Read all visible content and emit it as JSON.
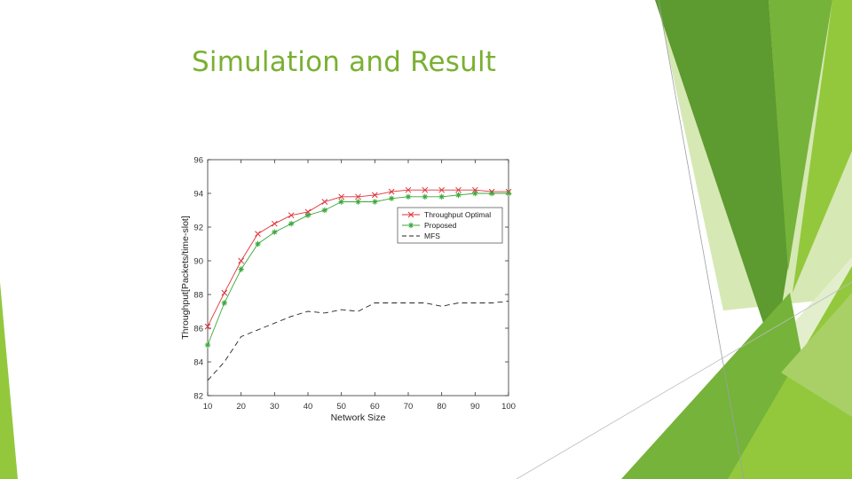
{
  "slide": {
    "title": "Simulation and Result"
  },
  "colors": {
    "title": "#7ab032",
    "accent_dark": "#5d9a2f",
    "accent_mid": "#76b33a",
    "accent_light": "#93c83d",
    "accent_pale": "#d6e8b4"
  },
  "chart_data": {
    "type": "line",
    "title": "",
    "xlabel": "Network Size",
    "ylabel": "Throughput[Packets/time-slot]",
    "xlim": [
      10,
      100
    ],
    "ylim": [
      82,
      96
    ],
    "xticks": [
      10,
      20,
      30,
      40,
      50,
      60,
      70,
      80,
      90,
      100
    ],
    "yticks": [
      82,
      84,
      86,
      88,
      90,
      92,
      94,
      96
    ],
    "grid": false,
    "legend_position": "top-right",
    "x": [
      10,
      15,
      20,
      25,
      30,
      35,
      40,
      45,
      50,
      55,
      60,
      65,
      70,
      75,
      80,
      85,
      90,
      95,
      100
    ],
    "series": [
      {
        "name": "Throughput Optimal",
        "color": "#e0323a",
        "marker": "x",
        "dash": "solid",
        "values": [
          86.1,
          88.1,
          90.0,
          91.6,
          92.2,
          92.7,
          92.9,
          93.5,
          93.8,
          93.8,
          93.9,
          94.1,
          94.2,
          94.2,
          94.2,
          94.2,
          94.2,
          94.1,
          94.1
        ]
      },
      {
        "name": "Proposed",
        "color": "#3aa83a",
        "marker": "asterisk",
        "dash": "solid",
        "values": [
          85.0,
          87.5,
          89.5,
          91.0,
          91.7,
          92.2,
          92.7,
          93.0,
          93.5,
          93.5,
          93.5,
          93.7,
          93.8,
          93.8,
          93.8,
          93.9,
          94.0,
          94.0,
          94.0
        ]
      },
      {
        "name": "MFS",
        "color": "#222222",
        "marker": "none",
        "dash": "dashed",
        "values": [
          82.9,
          84.0,
          85.5,
          85.9,
          86.3,
          86.7,
          87.0,
          86.9,
          87.1,
          87.0,
          87.5,
          87.5,
          87.5,
          87.5,
          87.3,
          87.5,
          87.5,
          87.5,
          87.6
        ]
      }
    ]
  }
}
